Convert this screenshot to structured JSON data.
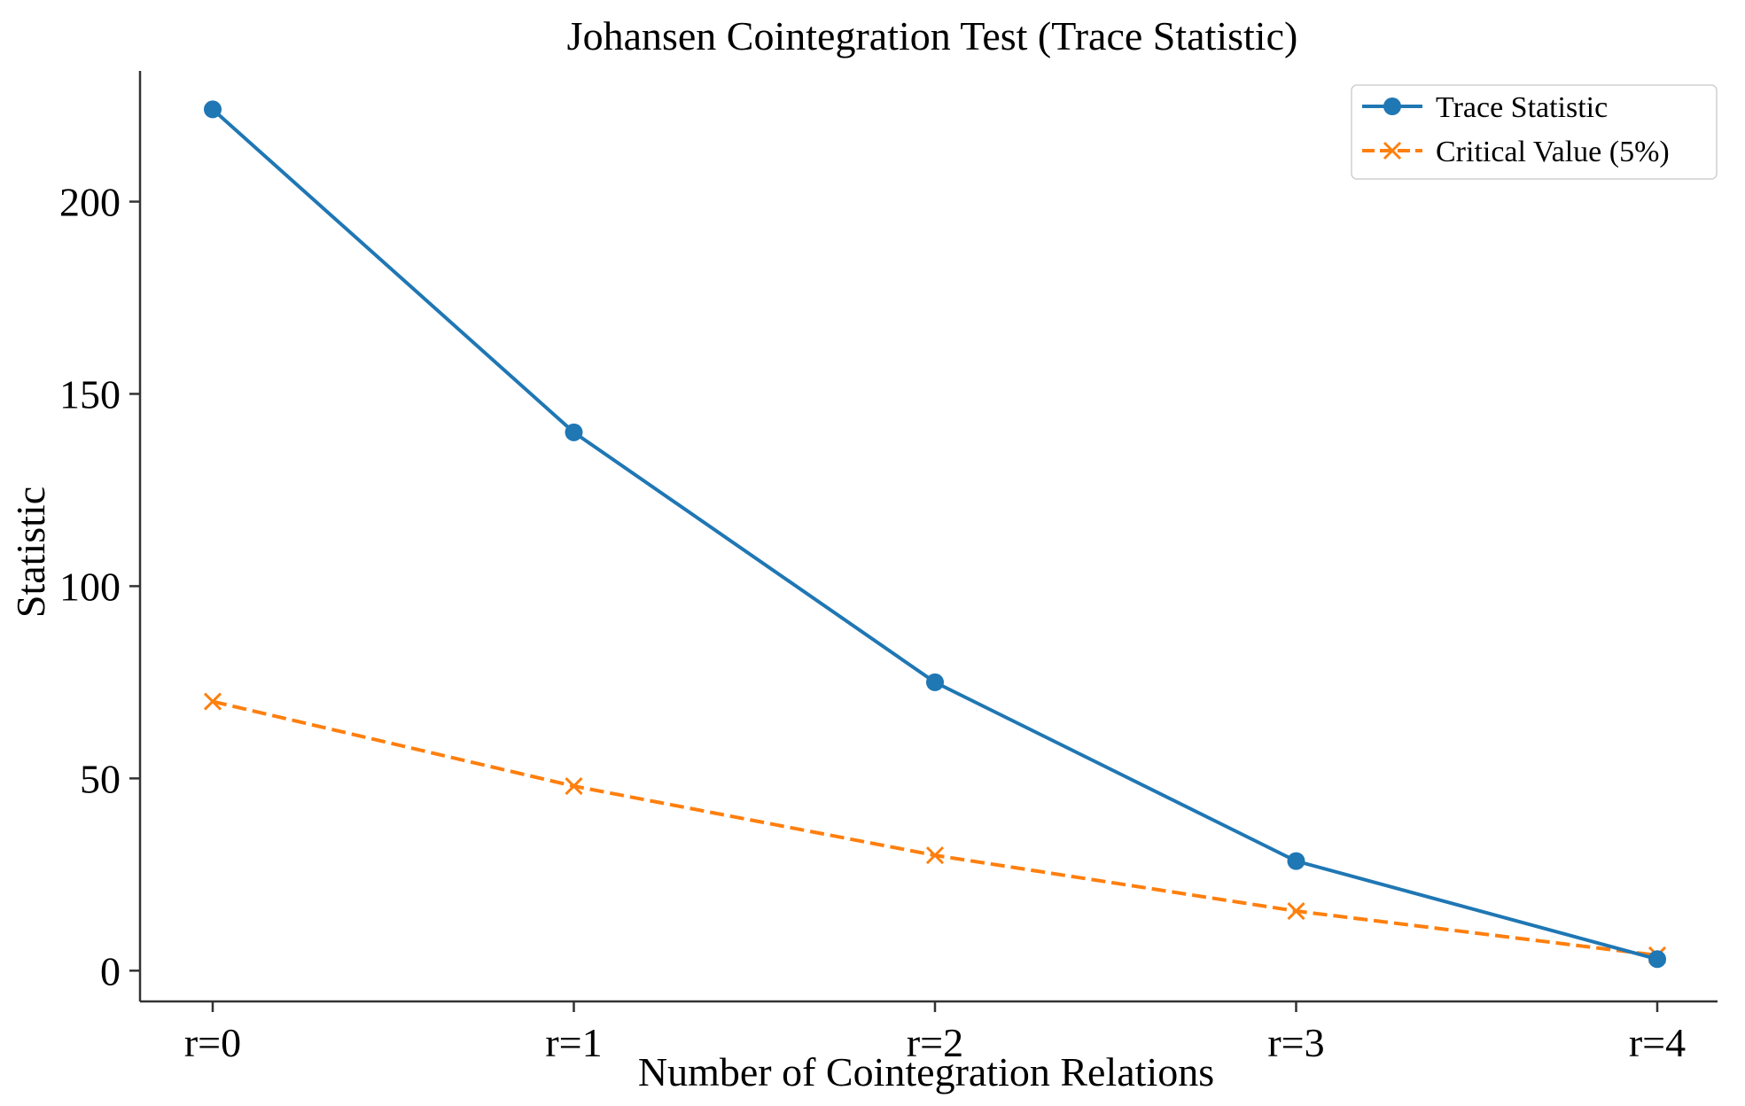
{
  "chart_data": {
    "type": "line",
    "title": "Johansen Cointegration Test (Trace Statistic)",
    "xlabel": "Number of Cointegration Relations",
    "ylabel": "Statistic",
    "categories": [
      "r=0",
      "r=1",
      "r=2",
      "r=3",
      "r=4"
    ],
    "ylim": [
      -8,
      234
    ],
    "yticks": [
      0,
      50,
      100,
      150,
      200
    ],
    "grid": false,
    "legend_position": "top-right",
    "series": [
      {
        "name": "Trace Statistic",
        "values": [
          224,
          140,
          75,
          28.5,
          3
        ],
        "color": "#1f77b4",
        "line_style": "solid",
        "marker": "circle"
      },
      {
        "name": "Critical Value (5%)",
        "values": [
          70,
          48,
          30,
          15.5,
          4
        ],
        "color": "#ff7f0e",
        "line_style": "dashed",
        "marker": "x"
      }
    ]
  }
}
